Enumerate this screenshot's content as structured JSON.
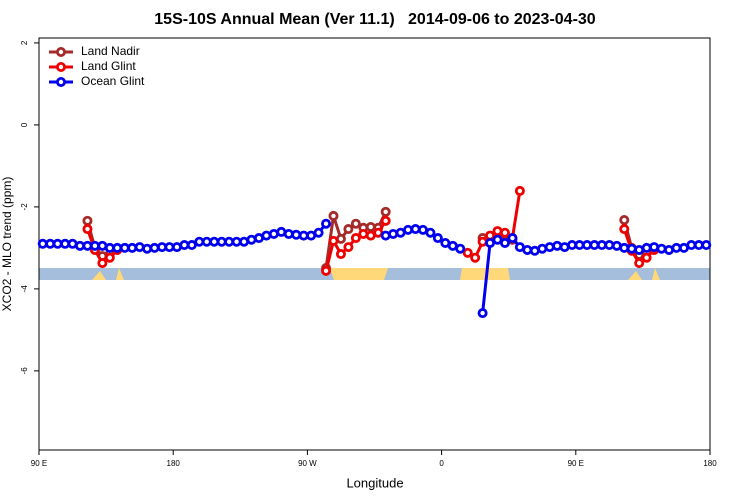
{
  "chart_data": {
    "type": "line",
    "title": "15S-10S Annual Mean (Ver 11.1)   2014-09-06 to 2023-04-30",
    "x_label": "Longitude",
    "y_label": "XCO2 - MLO trend (ppm)",
    "xlim": [
      90,
      540
    ],
    "ylim": [
      -7.93,
      2.12
    ],
    "xticks": [
      {
        "value": 90,
        "label": "90 E"
      },
      {
        "value": 180,
        "label": "180"
      },
      {
        "value": 270,
        "label": "90 W"
      },
      {
        "value": 360,
        "label": "0"
      },
      {
        "value": 450,
        "label": "90 E"
      },
      {
        "value": 540,
        "label": "180"
      }
    ],
    "yticks": [
      -6,
      -4,
      -2,
      0,
      2
    ],
    "legend": "top-left",
    "x": [
      92.5,
      97.5,
      102.5,
      107.5,
      112.5,
      117.5,
      122.5,
      127.5,
      132.5,
      137.5,
      142.5,
      147.5,
      152.5,
      157.5,
      162.5,
      167.5,
      172.5,
      177.5,
      182.5,
      187.5,
      192.5,
      197.5,
      202.5,
      207.5,
      212.5,
      217.5,
      222.5,
      227.5,
      232.5,
      237.5,
      242.5,
      247.5,
      252.5,
      257.5,
      262.5,
      267.5,
      272.5,
      277.5,
      282.5,
      287.5,
      292.5,
      297.5,
      302.5,
      307.5,
      312.5,
      317.5,
      322.5,
      327.5,
      332.5,
      337.5,
      342.5,
      347.5,
      352.5,
      357.5,
      362.5,
      367.5,
      372.5,
      377.5,
      382.5,
      387.5,
      392.5,
      397.5,
      402.5,
      407.5,
      412.5,
      417.5,
      422.5,
      427.5,
      432.5,
      437.5,
      442.5,
      447.5,
      452.5,
      457.5,
      462.5,
      467.5,
      472.5,
      477.5,
      482.5,
      487.5,
      492.5,
      497.5,
      502.5,
      507.5,
      512.5,
      517.5,
      522.5,
      527.5,
      532.5,
      537.5
    ],
    "series": [
      {
        "name": "Land Nadir",
        "color": "#a52a2a",
        "values": [
          null,
          null,
          null,
          null,
          null,
          null,
          -2.34,
          -3.0,
          -3.2,
          -3.15,
          null,
          null,
          null,
          null,
          null,
          null,
          null,
          null,
          null,
          null,
          null,
          null,
          null,
          null,
          null,
          null,
          null,
          null,
          null,
          null,
          null,
          null,
          null,
          null,
          null,
          null,
          null,
          null,
          -3.49,
          -2.22,
          -2.78,
          -2.54,
          -2.41,
          -2.51,
          -2.49,
          -2.51,
          -2.12,
          null,
          null,
          null,
          null,
          null,
          null,
          null,
          null,
          null,
          null,
          null,
          null,
          -2.76,
          -2.8,
          -2.63,
          -2.7,
          -2.8,
          null,
          null,
          null,
          null,
          null,
          null,
          null,
          null,
          null,
          null,
          null,
          null,
          null,
          null,
          -2.32,
          -3.0,
          -3.17,
          -3.1,
          null,
          null,
          null,
          null,
          null,
          null,
          null,
          null
        ]
      },
      {
        "name": "Land Glint",
        "color": "#ee0000",
        "values": [
          null,
          null,
          null,
          null,
          null,
          null,
          -2.54,
          -3.05,
          -3.37,
          -3.24,
          -3.05,
          null,
          null,
          null,
          null,
          null,
          null,
          null,
          null,
          null,
          null,
          null,
          null,
          null,
          null,
          null,
          null,
          null,
          null,
          null,
          null,
          null,
          null,
          null,
          null,
          null,
          null,
          null,
          -3.56,
          -2.83,
          -3.15,
          -2.98,
          -2.76,
          -2.66,
          -2.7,
          -2.63,
          -2.34,
          null,
          null,
          null,
          null,
          null,
          null,
          null,
          null,
          null,
          null,
          -3.12,
          -3.24,
          -2.85,
          -2.7,
          -2.59,
          -2.63,
          -2.76,
          -1.61,
          null,
          null,
          null,
          null,
          null,
          null,
          null,
          null,
          null,
          null,
          null,
          null,
          null,
          -2.54,
          -3.07,
          -3.37,
          -3.24,
          -3.05,
          null,
          null,
          null,
          null,
          null,
          null,
          null
        ]
      },
      {
        "name": "Ocean Glint",
        "color": "#0000ee",
        "values": [
          -2.9,
          -2.9,
          -2.9,
          -2.9,
          -2.9,
          -2.95,
          -2.95,
          -2.95,
          -2.95,
          -3.0,
          -3.0,
          -3.0,
          -3.0,
          -2.98,
          -3.02,
          -3.0,
          -2.98,
          -2.98,
          -2.98,
          -2.93,
          -2.93,
          -2.85,
          -2.85,
          -2.85,
          -2.85,
          -2.85,
          -2.85,
          -2.85,
          -2.8,
          -2.76,
          -2.7,
          -2.66,
          -2.61,
          -2.66,
          -2.68,
          -2.7,
          -2.7,
          -2.63,
          -2.41,
          null,
          null,
          null,
          null,
          null,
          null,
          null,
          -2.7,
          -2.66,
          -2.63,
          -2.56,
          -2.54,
          -2.56,
          -2.63,
          -2.76,
          -2.88,
          -2.95,
          -3.02,
          null,
          null,
          -4.59,
          -2.88,
          -2.8,
          -2.88,
          -2.76,
          -2.98,
          -3.05,
          -3.07,
          -3.02,
          -2.98,
          -2.95,
          -2.98,
          -2.93,
          -2.93,
          -2.93,
          -2.93,
          -2.93,
          -2.93,
          -2.95,
          -3.0,
          -3.02,
          -3.05,
          -3.0,
          -2.98,
          -3.02,
          -3.05,
          -3.0,
          -3.0,
          -2.93,
          -2.93,
          -2.93
        ]
      }
    ]
  }
}
